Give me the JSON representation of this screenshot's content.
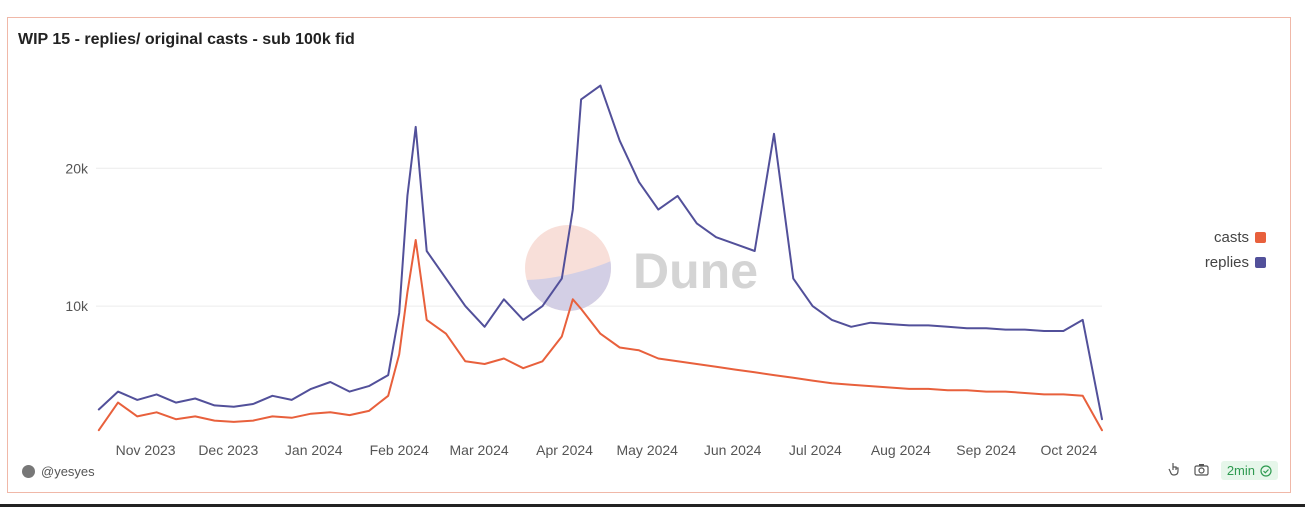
{
  "title": "WIP 15 - replies/ original casts - sub 100k fid",
  "author": "@yesyes",
  "status_badge": "2min",
  "watermark": "Dune",
  "colors": {
    "casts": "#e8603c",
    "replies": "#52509a",
    "grid": "#ececec",
    "border": "#f0b8a8"
  },
  "icons": [
    "user-avatar-icon",
    "hand-pointer-icon",
    "camera-icon",
    "check-circle-icon"
  ],
  "chart_data": {
    "type": "line",
    "title": "WIP 15 - replies/ original casts - sub 100k fid",
    "xlabel": "",
    "ylabel": "",
    "ylim": [
      0,
      28000
    ],
    "y_ticks": [
      10000,
      20000
    ],
    "y_tick_labels": [
      "10k",
      "20k"
    ],
    "x_ticks": [
      "2023-11-01",
      "2023-12-01",
      "2024-01-01",
      "2024-02-01",
      "2024-03-01",
      "2024-04-01",
      "2024-05-01",
      "2024-06-01",
      "2024-07-01",
      "2024-08-01",
      "2024-09-01",
      "2024-10-01"
    ],
    "x_tick_labels": [
      "Nov 2023",
      "Dec 2023",
      "Jan 2024",
      "Feb 2024",
      "Mar 2024",
      "Apr 2024",
      "May 2024",
      "Jun 2024",
      "Jul 2024",
      "Aug 2024",
      "Sep 2024",
      "Oct 2024"
    ],
    "legend": "right",
    "grid": true,
    "series": [
      {
        "name": "casts",
        "color": "#e8603c",
        "x": [
          "2023-10-15",
          "2023-10-22",
          "2023-10-29",
          "2023-11-05",
          "2023-11-12",
          "2023-11-19",
          "2023-11-26",
          "2023-12-03",
          "2023-12-10",
          "2023-12-17",
          "2023-12-24",
          "2023-12-31",
          "2024-01-07",
          "2024-01-14",
          "2024-01-21",
          "2024-01-28",
          "2024-02-01",
          "2024-02-04",
          "2024-02-07",
          "2024-02-11",
          "2024-02-18",
          "2024-02-25",
          "2024-03-03",
          "2024-03-10",
          "2024-03-17",
          "2024-03-24",
          "2024-03-31",
          "2024-04-04",
          "2024-04-07",
          "2024-04-14",
          "2024-04-21",
          "2024-04-28",
          "2024-05-05",
          "2024-05-12",
          "2024-05-19",
          "2024-05-26",
          "2024-06-02",
          "2024-06-09",
          "2024-06-16",
          "2024-06-23",
          "2024-06-30",
          "2024-07-07",
          "2024-07-14",
          "2024-07-21",
          "2024-07-28",
          "2024-08-04",
          "2024-08-11",
          "2024-08-18",
          "2024-08-25",
          "2024-09-01",
          "2024-09-08",
          "2024-09-15",
          "2024-09-22",
          "2024-09-29",
          "2024-10-06",
          "2024-10-13"
        ],
        "values": [
          1000,
          3000,
          2000,
          2300,
          1800,
          2000,
          1700,
          1600,
          1700,
          2000,
          1900,
          2200,
          2300,
          2100,
          2400,
          3500,
          6500,
          11000,
          14800,
          9000,
          8000,
          6000,
          5800,
          6200,
          5500,
          6000,
          7800,
          10500,
          9800,
          8000,
          7000,
          6800,
          6200,
          6000,
          5800,
          5600,
          5400,
          5200,
          5000,
          4800,
          4600,
          4400,
          4300,
          4200,
          4100,
          4000,
          4000,
          3900,
          3900,
          3800,
          3800,
          3700,
          3600,
          3600,
          3500,
          1000
        ]
      },
      {
        "name": "replies",
        "color": "#52509a",
        "x": [
          "2023-10-15",
          "2023-10-22",
          "2023-10-29",
          "2023-11-05",
          "2023-11-12",
          "2023-11-19",
          "2023-11-26",
          "2023-12-03",
          "2023-12-10",
          "2023-12-17",
          "2023-12-24",
          "2023-12-31",
          "2024-01-07",
          "2024-01-14",
          "2024-01-21",
          "2024-01-28",
          "2024-02-01",
          "2024-02-04",
          "2024-02-07",
          "2024-02-11",
          "2024-02-18",
          "2024-02-25",
          "2024-03-03",
          "2024-03-10",
          "2024-03-17",
          "2024-03-24",
          "2024-03-31",
          "2024-04-04",
          "2024-04-07",
          "2024-04-14",
          "2024-04-21",
          "2024-04-28",
          "2024-05-05",
          "2024-05-12",
          "2024-05-19",
          "2024-05-26",
          "2024-06-02",
          "2024-06-09",
          "2024-06-16",
          "2024-06-23",
          "2024-06-30",
          "2024-07-07",
          "2024-07-14",
          "2024-07-21",
          "2024-07-28",
          "2024-08-04",
          "2024-08-11",
          "2024-08-18",
          "2024-08-25",
          "2024-09-01",
          "2024-09-08",
          "2024-09-15",
          "2024-09-22",
          "2024-09-29",
          "2024-10-06",
          "2024-10-13"
        ],
        "values": [
          2500,
          3800,
          3200,
          3600,
          3000,
          3300,
          2800,
          2700,
          2900,
          3500,
          3200,
          4000,
          4500,
          3800,
          4200,
          5000,
          9500,
          18000,
          23000,
          14000,
          12000,
          10000,
          8500,
          10500,
          9000,
          10000,
          12000,
          17000,
          25000,
          26000,
          22000,
          19000,
          17000,
          18000,
          16000,
          15000,
          14500,
          14000,
          22500,
          12000,
          10000,
          9000,
          8500,
          8800,
          8700,
          8600,
          8600,
          8500,
          8400,
          8400,
          8300,
          8300,
          8200,
          8200,
          9000,
          1800
        ]
      }
    ]
  }
}
